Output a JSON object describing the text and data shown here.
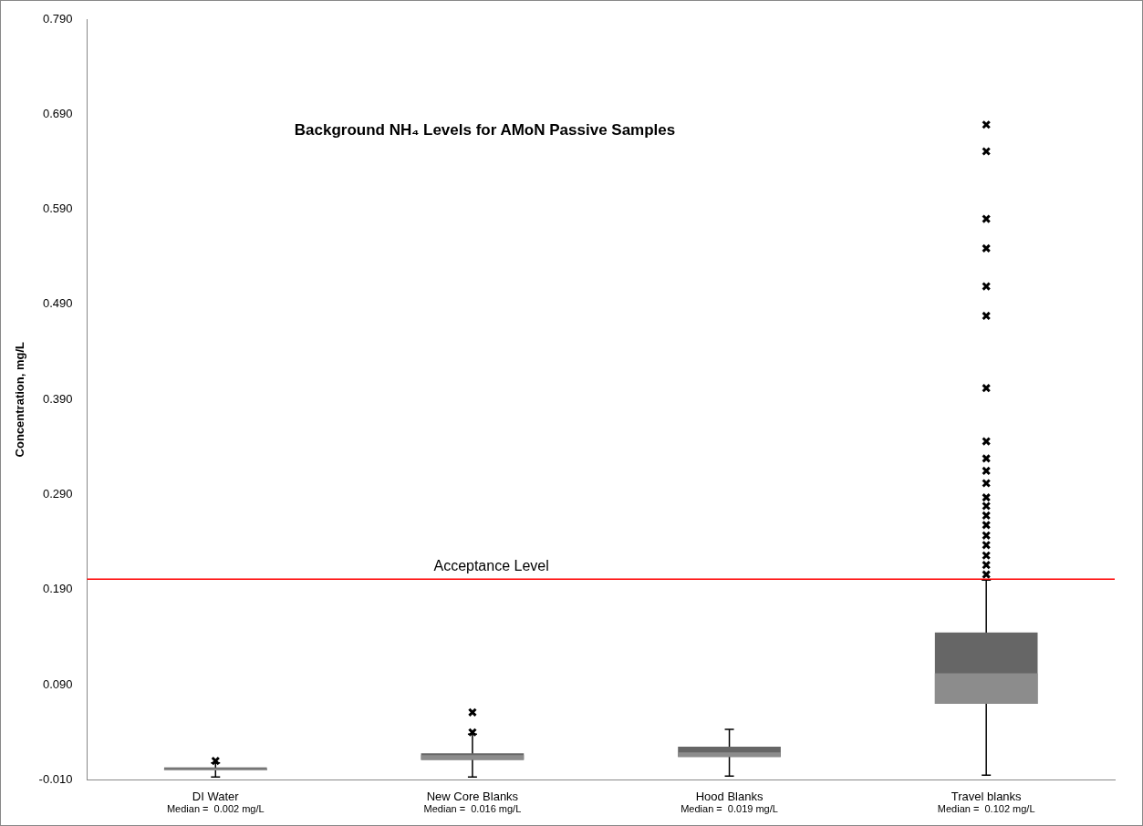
{
  "chart_data": {
    "type": "box",
    "title": "Background NH₄ Levels for AMoN Passive Samples",
    "ylabel": "Concentration, mg/L",
    "categories": [
      "DI Water",
      "New Core Blanks",
      "Hood Blanks",
      "Travel blanks"
    ],
    "series": [
      {
        "color": "#666666",
        "boxes": [
          {
            "low": -0.007,
            "q1": 0.0,
            "median": 0.002,
            "q3": 0.003,
            "high": 0.008,
            "outliers": [
              0.01
            ]
          },
          {
            "low": -0.007,
            "q1": 0.011,
            "median": 0.016,
            "q3": 0.018,
            "high": 0.038,
            "outliers": [
              0.04,
              0.061
            ]
          },
          {
            "low": -0.006,
            "q1": 0.014,
            "median": 0.019,
            "q3": 0.025,
            "high": 0.043
          },
          {
            "low": -0.005,
            "q1": 0.07,
            "median": 0.102,
            "q3": 0.145,
            "high": 0.2,
            "outliers": [
              0.206,
              0.216,
              0.226,
              0.237,
              0.247,
              0.258,
              0.268,
              0.278,
              0.287,
              0.302,
              0.315,
              0.328,
              0.346,
              0.402,
              0.478,
              0.509,
              0.549,
              0.58,
              0.651,
              0.679
            ]
          }
        ]
      }
    ],
    "ylim": [
      -0.01,
      0.79
    ],
    "yticks": [
      {
        "value": -0.01,
        "label": "-0.010"
      },
      {
        "value": 0.09,
        "label": "0.090"
      },
      {
        "value": 0.19,
        "label": "0.190"
      },
      {
        "value": 0.29,
        "label": "0.290"
      },
      {
        "value": 0.39,
        "label": "0.390"
      },
      {
        "value": 0.49,
        "label": "0.490"
      },
      {
        "value": 0.59,
        "label": "0.590"
      },
      {
        "value": 0.69,
        "label": "0.690"
      },
      {
        "value": 0.79,
        "label": "0.790"
      }
    ],
    "ref_lines": [
      {
        "axis": "y",
        "value": 0.201,
        "label": "Acceptance Level",
        "color": "#ff0000"
      }
    ],
    "annotations": [
      "Median =  0.002 mg/L",
      "Median =  0.016 mg/L",
      "Median =  0.019 mg/L",
      "Median =  0.102 mg/L"
    ],
    "grid": false,
    "legend": false,
    "marker": "cross"
  }
}
